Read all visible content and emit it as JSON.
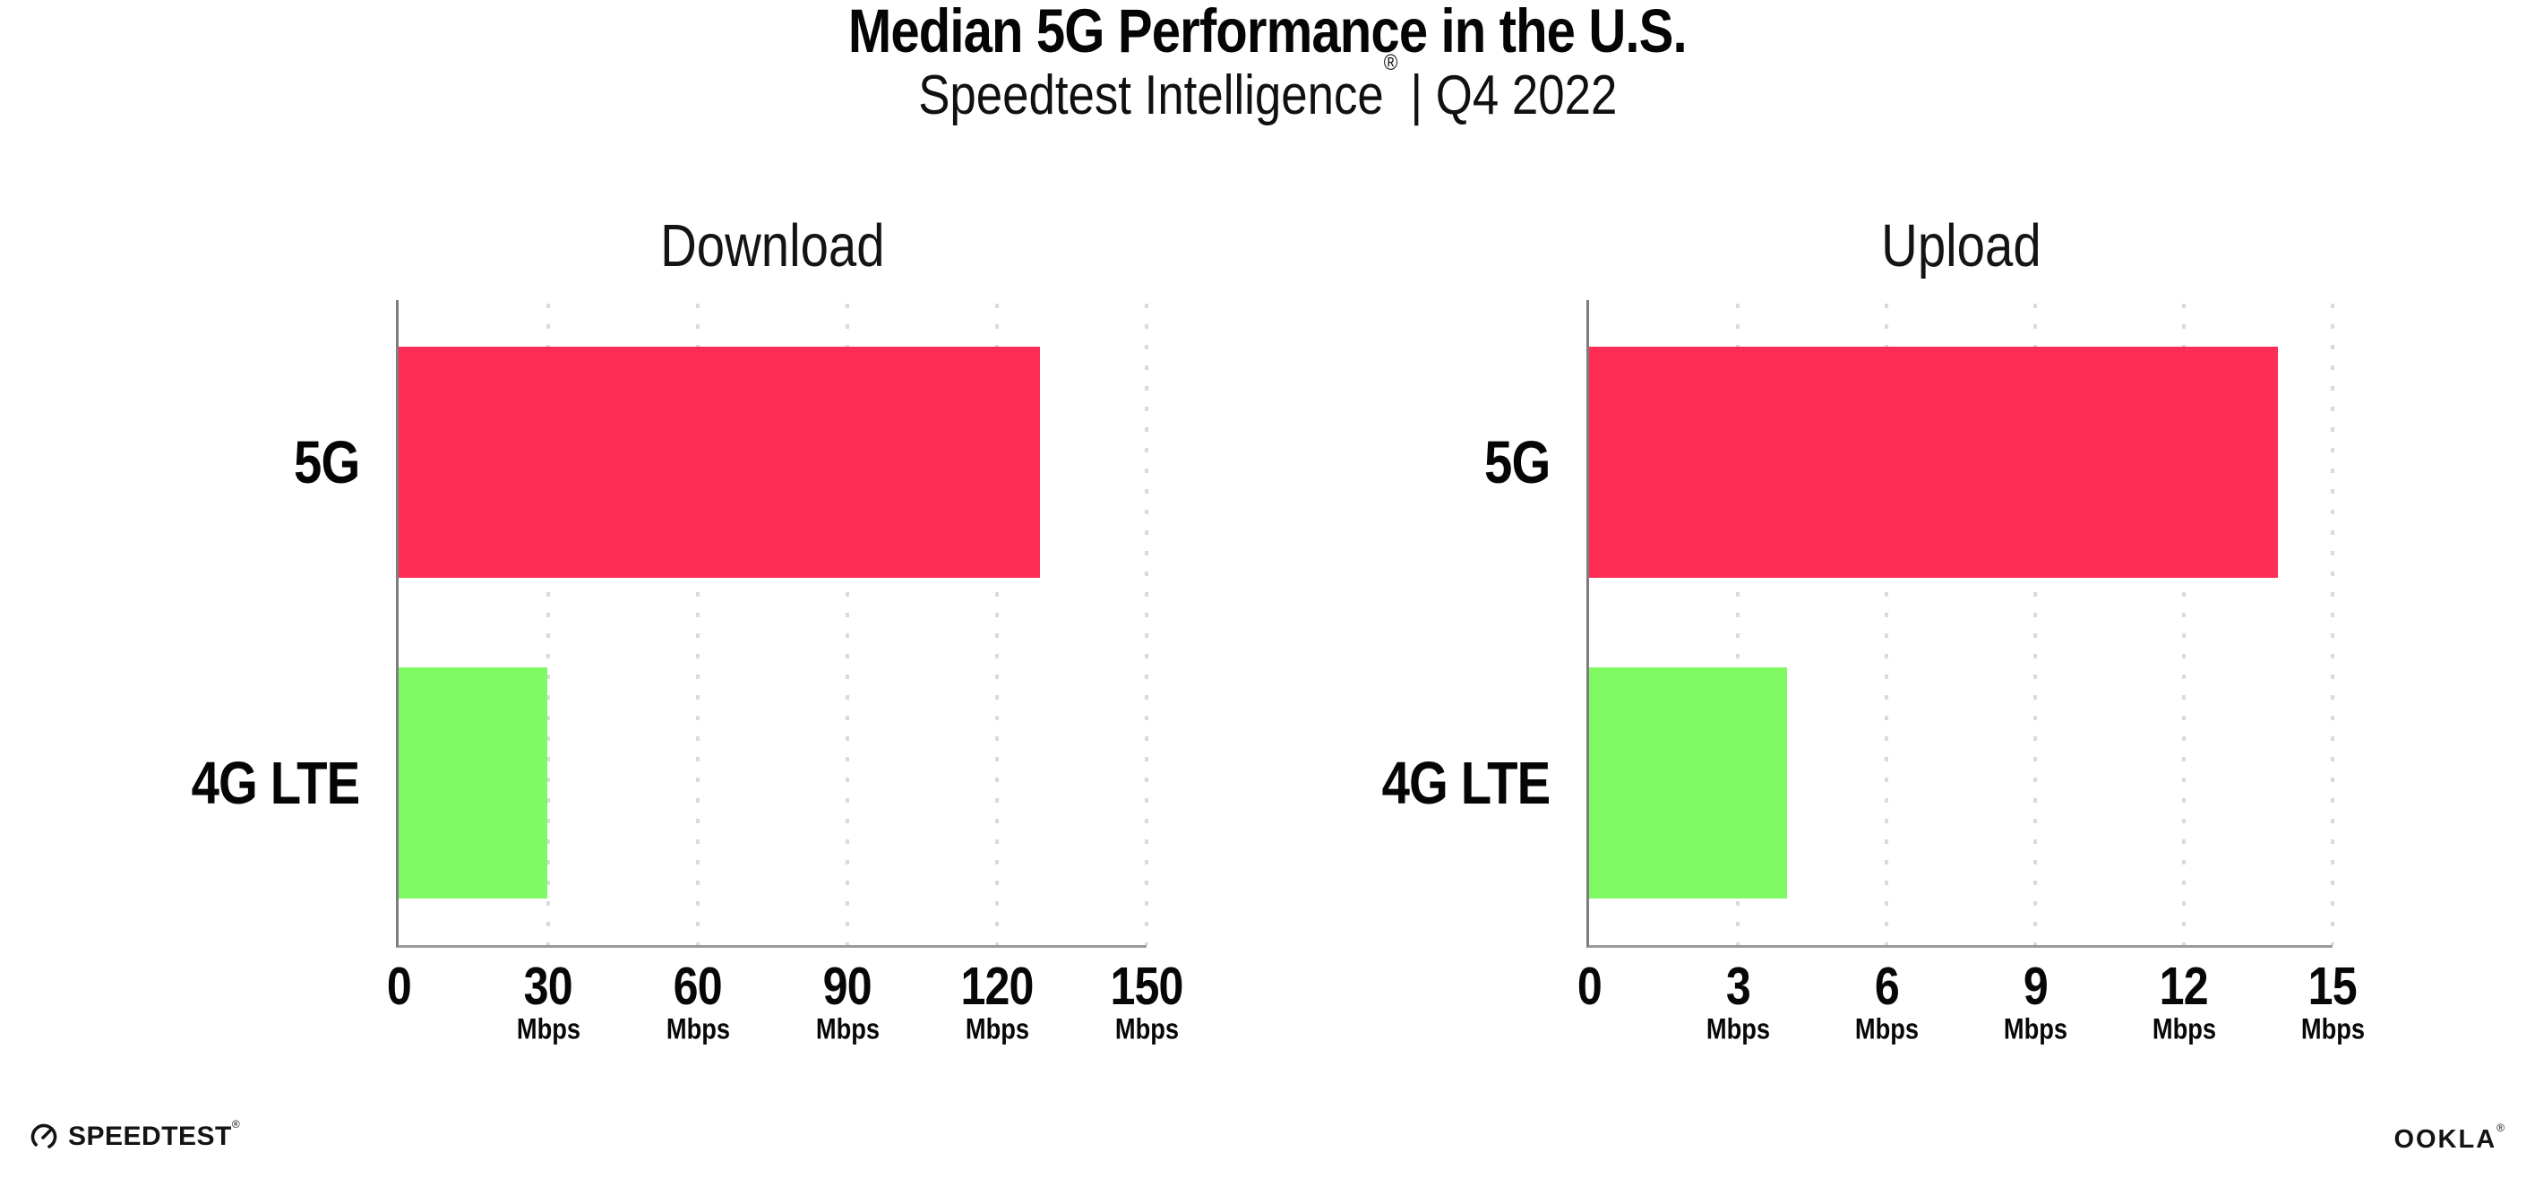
{
  "header": {
    "title": "Median 5G Performance in the U.S.",
    "subtitle_brand": "Speedtest Intelligence",
    "subtitle_reg": "®",
    "subtitle_rest": "| Q4 2022"
  },
  "footer": {
    "speedtest_label": "SPEEDTEST",
    "speedtest_reg": "®",
    "ookla_label": "OOKLA",
    "ookla_reg": "®"
  },
  "colors": {
    "bar_5g": "#FF2D55",
    "bar_4g_lte": "#80FA64",
    "gridline": "#D9D9E3",
    "axis_line": "#9A9A9A",
    "spine": "#7D7D7D",
    "text": "#0A0A0A"
  },
  "chart_data": {
    "type": "bar",
    "orientation": "horizontal",
    "grid": "vertical-dotted",
    "legend": "none",
    "categories": [
      "5G",
      "4G LTE"
    ],
    "bar_colors": [
      "#FF2D55",
      "#80FA64"
    ],
    "unit": "Mbps",
    "charts": [
      {
        "title": "Download",
        "xlim": [
          0,
          150
        ],
        "xticks": [
          {
            "value": 0,
            "label": "0",
            "unit": ""
          },
          {
            "value": 30,
            "label": "30",
            "unit": "Mbps"
          },
          {
            "value": 60,
            "label": "60",
            "unit": "Mbps"
          },
          {
            "value": 90,
            "label": "90",
            "unit": "Mbps"
          },
          {
            "value": 120,
            "label": "120",
            "unit": "Mbps"
          },
          {
            "value": 150,
            "label": "150",
            "unit": "Mbps"
          }
        ],
        "values": [
          128.6,
          29.9
        ]
      },
      {
        "title": "Upload",
        "xlim": [
          0,
          15
        ],
        "xticks": [
          {
            "value": 0,
            "label": "0",
            "unit": ""
          },
          {
            "value": 3,
            "label": "3",
            "unit": "Mbps"
          },
          {
            "value": 6,
            "label": "6",
            "unit": "Mbps"
          },
          {
            "value": 9,
            "label": "9",
            "unit": "Mbps"
          },
          {
            "value": 12,
            "label": "12",
            "unit": "Mbps"
          },
          {
            "value": 15,
            "label": "15",
            "unit": "Mbps"
          }
        ],
        "values": [
          13.9,
          4.0
        ]
      }
    ]
  }
}
